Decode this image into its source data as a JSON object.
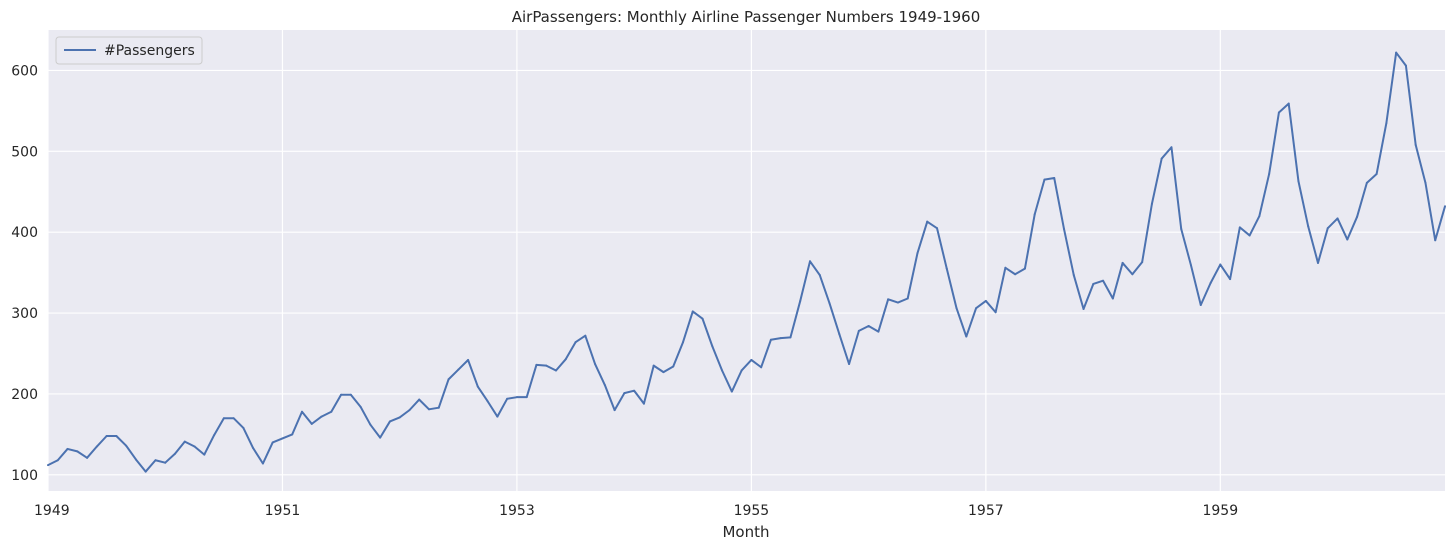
{
  "chart_data": {
    "type": "line",
    "title": "AirPassengers: Monthly Airline Passenger Numbers 1949-1960",
    "xlabel": "Month",
    "ylabel": "",
    "x_start": "1949-01",
    "x_end": "1960-12",
    "xlim": [
      "1949-01",
      "1960-12"
    ],
    "ylim": [
      80,
      650
    ],
    "grid": true,
    "legend": {
      "position": "top-left",
      "entries": [
        "#Passengers"
      ]
    },
    "x_ticks": [
      {
        "label": "1949",
        "date": "1949-01"
      },
      {
        "label": "1951",
        "date": "1951-01"
      },
      {
        "label": "1953",
        "date": "1953-01"
      },
      {
        "label": "1955",
        "date": "1955-01"
      },
      {
        "label": "1957",
        "date": "1957-01"
      },
      {
        "label": "1959",
        "date": "1959-01"
      }
    ],
    "y_ticks": [
      100,
      200,
      300,
      400,
      500,
      600
    ],
    "series": [
      {
        "name": "#Passengers",
        "color": "#4c72b0",
        "values": [
          112,
          118,
          132,
          129,
          121,
          135,
          148,
          148,
          136,
          119,
          104,
          118,
          115,
          126,
          141,
          135,
          125,
          149,
          170,
          170,
          158,
          133,
          114,
          140,
          145,
          150,
          178,
          163,
          172,
          178,
          199,
          199,
          184,
          162,
          146,
          166,
          171,
          180,
          193,
          181,
          183,
          218,
          230,
          242,
          209,
          191,
          172,
          194,
          196,
          196,
          236,
          235,
          229,
          243,
          264,
          272,
          237,
          211,
          180,
          201,
          204,
          188,
          235,
          227,
          234,
          264,
          302,
          293,
          259,
          229,
          203,
          229,
          242,
          233,
          267,
          269,
          270,
          315,
          364,
          347,
          312,
          274,
          237,
          278,
          284,
          277,
          317,
          313,
          318,
          374,
          413,
          405,
          355,
          306,
          271,
          306,
          315,
          301,
          356,
          348,
          355,
          422,
          465,
          467,
          404,
          347,
          305,
          336,
          340,
          318,
          362,
          348,
          363,
          435,
          491,
          505,
          404,
          359,
          310,
          337,
          360,
          342,
          406,
          396,
          420,
          472,
          548,
          559,
          463,
          407,
          362,
          405,
          417,
          391,
          419,
          461,
          472,
          535,
          622,
          606,
          508,
          461,
          390,
          432
        ]
      }
    ]
  }
}
